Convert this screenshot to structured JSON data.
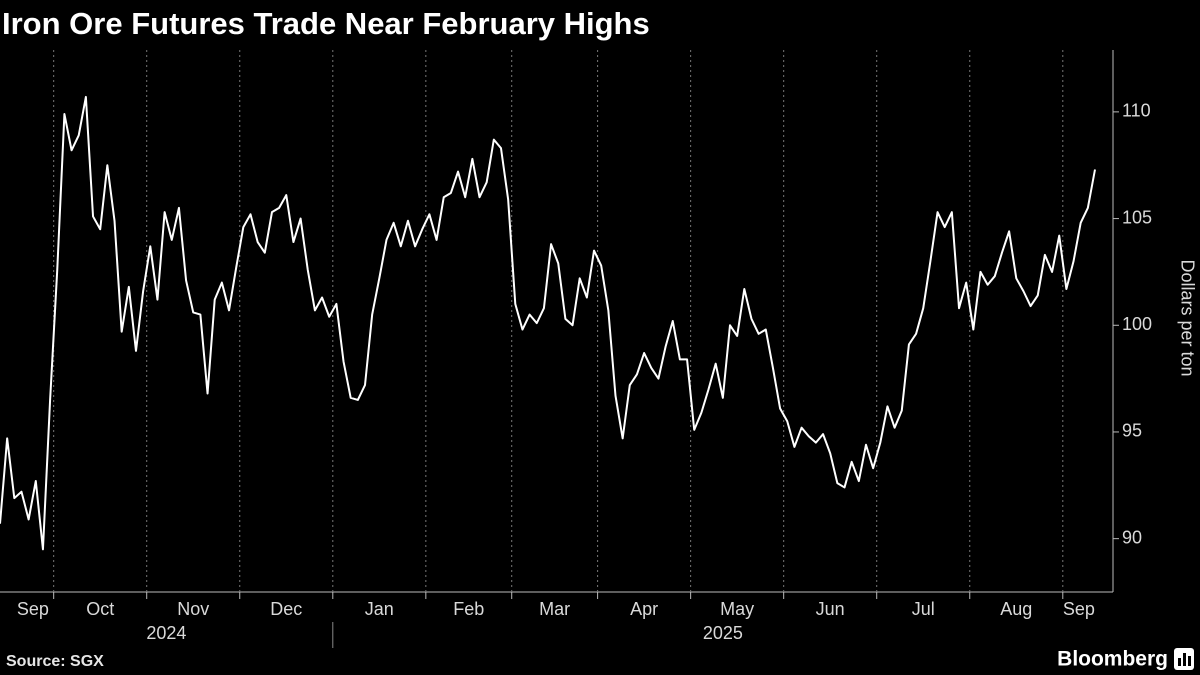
{
  "chart_data": {
    "type": "line",
    "title": "Iron Ore Futures Trade Near February Highs",
    "y_axis_label": "Dollars per ton",
    "source": "Source: SGX",
    "logo": "Bloomberg",
    "color": "#ffffff",
    "ylim": [
      87.5,
      112.9
    ],
    "yticks": [
      90,
      95,
      100,
      105,
      110
    ],
    "xticks": [
      {
        "value": "2024-09",
        "label": "Sep"
      },
      {
        "value": "2024-10",
        "label": "Oct"
      },
      {
        "value": "2024-11",
        "label": "Nov"
      },
      {
        "value": "2024-12",
        "label": "Dec"
      },
      {
        "value": "2025-01",
        "label": "Jan"
      },
      {
        "value": "2025-02",
        "label": "Feb"
      },
      {
        "value": "2025-03",
        "label": "Mar"
      },
      {
        "value": "2025-04",
        "label": "Apr"
      },
      {
        "value": "2025-05",
        "label": "May"
      },
      {
        "value": "2025-06",
        "label": "Jun"
      },
      {
        "value": "2025-07",
        "label": "Jul"
      },
      {
        "value": "2025-08",
        "label": "Aug"
      },
      {
        "value": "2025-09",
        "label": "Sep"
      }
    ],
    "year_ticks": [
      "2024",
      "2025"
    ],
    "x": [
      "2024-09",
      "2024-09",
      "2024-09",
      "2024-09",
      "2024-09",
      "2024-09",
      "2024-09",
      "2024-09",
      "2024-10",
      "2024-10",
      "2024-10",
      "2024-10",
      "2024-10",
      "2024-10",
      "2024-10",
      "2024-10",
      "2024-10",
      "2024-10",
      "2024-10",
      "2024-10",
      "2024-10",
      "2024-11",
      "2024-11",
      "2024-11",
      "2024-11",
      "2024-11",
      "2024-11",
      "2024-11",
      "2024-11",
      "2024-11",
      "2024-11",
      "2024-11",
      "2024-11",
      "2024-11",
      "2024-12",
      "2024-12",
      "2024-12",
      "2024-12",
      "2024-12",
      "2024-12",
      "2024-12",
      "2024-12",
      "2024-12",
      "2024-12",
      "2024-12",
      "2024-12",
      "2024-12",
      "2025-01",
      "2025-01",
      "2025-01",
      "2025-01",
      "2025-01",
      "2025-01",
      "2025-01",
      "2025-01",
      "2025-01",
      "2025-01",
      "2025-01",
      "2025-01",
      "2025-01",
      "2025-02",
      "2025-02",
      "2025-02",
      "2025-02",
      "2025-02",
      "2025-02",
      "2025-02",
      "2025-02",
      "2025-02",
      "2025-02",
      "2025-02",
      "2025-02",
      "2025-03",
      "2025-03",
      "2025-03",
      "2025-03",
      "2025-03",
      "2025-03",
      "2025-03",
      "2025-03",
      "2025-03",
      "2025-03",
      "2025-03",
      "2025-03",
      "2025-04",
      "2025-04",
      "2025-04",
      "2025-04",
      "2025-04",
      "2025-04",
      "2025-04",
      "2025-04",
      "2025-04",
      "2025-04",
      "2025-04",
      "2025-04",
      "2025-04",
      "2025-05",
      "2025-05",
      "2025-05",
      "2025-05",
      "2025-05",
      "2025-05",
      "2025-05",
      "2025-05",
      "2025-05",
      "2025-05",
      "2025-05",
      "2025-05",
      "2025-05",
      "2025-06",
      "2025-06",
      "2025-06",
      "2025-06",
      "2025-06",
      "2025-06",
      "2025-06",
      "2025-06",
      "2025-06",
      "2025-06",
      "2025-06",
      "2025-06",
      "2025-06",
      "2025-07",
      "2025-07",
      "2025-07",
      "2025-07",
      "2025-07",
      "2025-07",
      "2025-07",
      "2025-07",
      "2025-07",
      "2025-07",
      "2025-07",
      "2025-07",
      "2025-07",
      "2025-08",
      "2025-08",
      "2025-08",
      "2025-08",
      "2025-08",
      "2025-08",
      "2025-08",
      "2025-08",
      "2025-08",
      "2025-08",
      "2025-08",
      "2025-08",
      "2025-08",
      "2025-09",
      "2025-09",
      "2025-09",
      "2025-09",
      "2025-09"
    ],
    "values": [
      90.7,
      94.7,
      91.9,
      92.2,
      90.9,
      92.7,
      89.5,
      96.5,
      102.6,
      109.9,
      108.2,
      108.9,
      110.7,
      105.1,
      104.5,
      107.5,
      104.9,
      99.7,
      101.8,
      98.8,
      101.6,
      103.7,
      101.2,
      105.3,
      104.0,
      105.5,
      102.1,
      100.6,
      100.5,
      96.8,
      101.2,
      102.0,
      100.7,
      102.7,
      104.6,
      105.2,
      103.9,
      103.4,
      105.3,
      105.5,
      106.1,
      103.9,
      105.0,
      102.6,
      100.7,
      101.3,
      100.4,
      101.0,
      98.3,
      96.6,
      96.5,
      97.2,
      100.5,
      102.2,
      104.0,
      104.8,
      103.7,
      104.9,
      103.7,
      104.5,
      105.2,
      104.0,
      106.0,
      106.2,
      107.2,
      106.0,
      107.8,
      106.0,
      106.7,
      108.7,
      108.3,
      105.9,
      101.0,
      99.8,
      100.5,
      100.1,
      100.8,
      103.8,
      102.9,
      100.3,
      100.0,
      102.2,
      101.3,
      103.5,
      102.8,
      100.7,
      96.7,
      94.7,
      97.2,
      97.7,
      98.7,
      98.0,
      97.5,
      99.0,
      100.2,
      98.4,
      98.4,
      95.1,
      95.9,
      97.0,
      98.2,
      96.6,
      100.0,
      99.5,
      101.7,
      100.3,
      99.6,
      99.8,
      98.0,
      96.1,
      95.5,
      94.3,
      95.2,
      94.8,
      94.5,
      94.9,
      94.0,
      92.6,
      92.4,
      93.6,
      92.7,
      94.4,
      93.3,
      94.5,
      96.2,
      95.2,
      96.0,
      99.1,
      99.6,
      100.8,
      103.0,
      105.3,
      104.6,
      105.3,
      100.8,
      102.0,
      99.8,
      102.5,
      101.9,
      102.3,
      103.4,
      104.4,
      102.2,
      101.6,
      100.9,
      101.4,
      103.3,
      102.5,
      104.2,
      101.7,
      103.0,
      104.8,
      105.5,
      107.3
    ]
  }
}
